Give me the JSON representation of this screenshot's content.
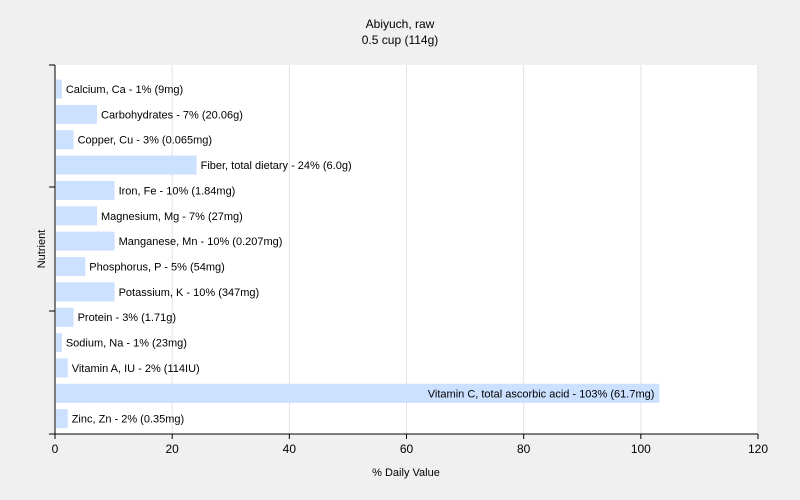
{
  "chart_data": {
    "type": "bar",
    "orientation": "horizontal",
    "title": "Abiyuch, raw",
    "subtitle": "0.5 cup (114g)",
    "xlabel": "% Daily Value",
    "ylabel": "Nutrient",
    "xlim": [
      0,
      120
    ],
    "xticks": [
      0,
      20,
      40,
      60,
      80,
      100,
      120
    ],
    "grid": true,
    "bar_color": "#cce0ff",
    "categories": [
      "Calcium, Ca",
      "Carbohydrates",
      "Copper, Cu",
      "Fiber, total dietary",
      "Iron, Fe",
      "Magnesium, Mg",
      "Manganese, Mn",
      "Phosphorus, P",
      "Potassium, K",
      "Protein",
      "Sodium, Na",
      "Vitamin A, IU",
      "Vitamin C, total ascorbic acid",
      "Zinc, Zn"
    ],
    "values": [
      1,
      7,
      3,
      24,
      10,
      7,
      10,
      5,
      10,
      3,
      1,
      2,
      103,
      2
    ],
    "labels": [
      "Calcium, Ca - 1% (9mg)",
      "Carbohydrates - 7% (20.06g)",
      "Copper, Cu - 3% (0.065mg)",
      "Fiber, total dietary - 24% (6.0g)",
      "Iron, Fe - 10% (1.84mg)",
      "Magnesium, Mg - 7% (27mg)",
      "Manganese, Mn - 10% (0.207mg)",
      "Phosphorus, P - 5% (54mg)",
      "Potassium, K - 10% (347mg)",
      "Protein - 3% (1.71g)",
      "Sodium, Na - 1% (23mg)",
      "Vitamin A, IU - 2% (114IU)",
      "Vitamin C, total ascorbic acid - 103% (61.7mg)",
      "Zinc, Zn - 2% (0.35mg)"
    ]
  }
}
